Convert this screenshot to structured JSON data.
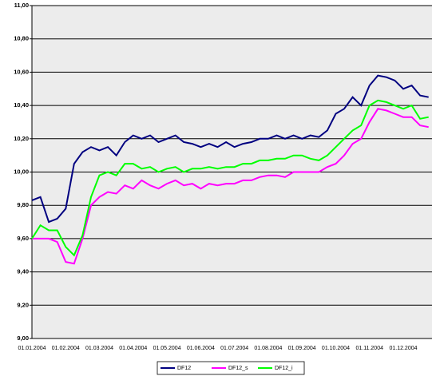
{
  "chart_data": {
    "type": "line",
    "categories": [
      "01.01.2004",
      null,
      null,
      null,
      "01.02.2004",
      null,
      null,
      null,
      "01.03.2004",
      null,
      null,
      null,
      "01.04.2004",
      null,
      null,
      null,
      "01.05.2004",
      null,
      null,
      null,
      "01.06.2004",
      null,
      null,
      null,
      "01.07.2004",
      null,
      null,
      null,
      "01.08.2004",
      null,
      null,
      null,
      "01.09.2004",
      null,
      null,
      null,
      "01.10.2004",
      null,
      null,
      null,
      "01.11.2004",
      null,
      null,
      null,
      "01.12.2004",
      null,
      null,
      null
    ],
    "series": [
      {
        "name": "DF12",
        "color": "#000080",
        "values": [
          9.83,
          9.85,
          9.7,
          9.72,
          9.78,
          10.05,
          10.12,
          10.15,
          10.13,
          10.15,
          10.1,
          10.18,
          10.22,
          10.2,
          10.22,
          10.18,
          10.2,
          10.22,
          10.18,
          10.17,
          10.15,
          10.17,
          10.15,
          10.18,
          10.15,
          10.17,
          10.18,
          10.2,
          10.2,
          10.22,
          10.2,
          10.22,
          10.2,
          10.22,
          10.21,
          10.25,
          10.35,
          10.38,
          10.45,
          10.4,
          10.52,
          10.58,
          10.57,
          10.55,
          10.5,
          10.52,
          10.46,
          10.45
        ]
      },
      {
        "name": "DF12_s",
        "color": "#ff00ff",
        "values": [
          9.6,
          9.6,
          9.6,
          9.58,
          9.46,
          9.45,
          9.6,
          9.8,
          9.85,
          9.88,
          9.87,
          9.92,
          9.9,
          9.95,
          9.92,
          9.9,
          9.93,
          9.95,
          9.92,
          9.93,
          9.9,
          9.93,
          9.92,
          9.93,
          9.93,
          9.95,
          9.95,
          9.97,
          9.98,
          9.98,
          9.97,
          10.0,
          10.0,
          10.0,
          10.0,
          10.03,
          10.05,
          10.1,
          10.17,
          10.2,
          10.3,
          10.38,
          10.37,
          10.35,
          10.33,
          10.33,
          10.28,
          10.27
        ]
      },
      {
        "name": "DF12_i",
        "color": "#00ff00",
        "values": [
          9.6,
          9.68,
          9.65,
          9.65,
          9.55,
          9.5,
          9.62,
          9.85,
          9.98,
          10.0,
          9.98,
          10.05,
          10.05,
          10.02,
          10.03,
          10.0,
          10.02,
          10.03,
          10.0,
          10.02,
          10.02,
          10.03,
          10.02,
          10.03,
          10.03,
          10.05,
          10.05,
          10.07,
          10.07,
          10.08,
          10.08,
          10.1,
          10.1,
          10.08,
          10.07,
          10.1,
          10.15,
          10.2,
          10.25,
          10.28,
          10.4,
          10.43,
          10.42,
          10.4,
          10.38,
          10.4,
          10.32,
          10.33
        ]
      }
    ],
    "ylim": [
      9.0,
      11.0
    ],
    "yticks": [
      {
        "value": 9.0,
        "label": "9,00"
      },
      {
        "value": 9.2,
        "label": "9,20"
      },
      {
        "value": 9.4,
        "label": "9,40"
      },
      {
        "value": 9.6,
        "label": "9,60"
      },
      {
        "value": 9.8,
        "label": "9,80"
      },
      {
        "value": 10.0,
        "label": "10,00"
      },
      {
        "value": 10.2,
        "label": "10,20"
      },
      {
        "value": 10.4,
        "label": "10,40"
      },
      {
        "value": 10.6,
        "label": "10,60"
      },
      {
        "value": 10.8,
        "label": "10,80"
      },
      {
        "value": 11.0,
        "label": "11,00"
      }
    ],
    "grid": true,
    "legend": "bottom"
  }
}
